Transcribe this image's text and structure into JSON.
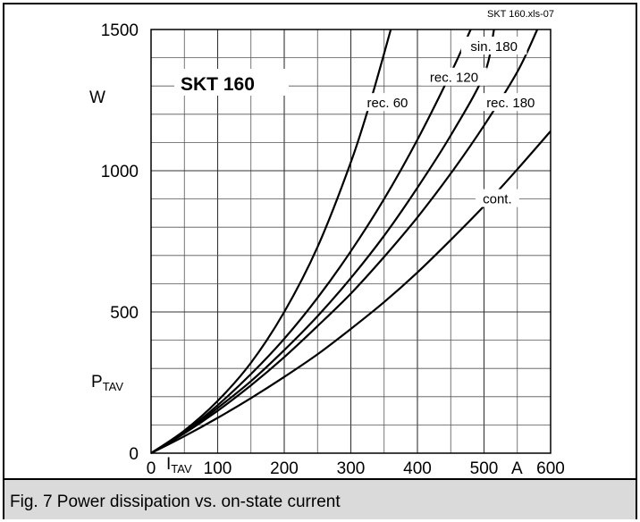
{
  "file_tag": "SKT 160.xls-07",
  "device_label": "SKT 160",
  "caption": "Fig. 7 Power dissipation vs. on-state current",
  "chart_data": {
    "type": "line",
    "title": "",
    "xlim": [
      0,
      600
    ],
    "ylim": [
      0,
      1500
    ],
    "x_ticks": [
      0,
      100,
      200,
      300,
      400,
      500,
      600
    ],
    "x_tick_labels": [
      "0",
      "100",
      "200",
      "300",
      "400",
      "500",
      "600"
    ],
    "y_ticks": [
      0,
      500,
      1000,
      1500
    ],
    "y_tick_labels": [
      "0",
      "500",
      "1000",
      "1500"
    ],
    "x_minor_step": 50,
    "y_minor_step": 100,
    "ylabel_unit": "W",
    "ylabel_symbol": "P",
    "ylabel_sub": "TAV",
    "xlabel_symbol": "I",
    "xlabel_sub": "TAV",
    "xlabel_unit": "A",
    "grid": true,
    "series": [
      {
        "name": "rec. 60",
        "x": [
          0,
          50,
          100,
          150,
          200,
          250,
          300,
          330,
          360
        ],
        "y": [
          0,
          80,
          185,
          320,
          500,
          730,
          1030,
          1250,
          1500
        ]
      },
      {
        "name": "rec. 120",
        "x": [
          0,
          50,
          100,
          150,
          200,
          250,
          300,
          350,
          400,
          450,
          480
        ],
        "y": [
          0,
          75,
          170,
          280,
          405,
          550,
          715,
          900,
          1110,
          1345,
          1500
        ]
      },
      {
        "name": "sin. 180",
        "x": [
          0,
          50,
          100,
          150,
          200,
          250,
          300,
          350,
          400,
          450,
          500,
          515
        ],
        "y": [
          0,
          72,
          160,
          255,
          365,
          485,
          620,
          770,
          940,
          1125,
          1340,
          1500
        ]
      },
      {
        "name": "rec. 180",
        "x": [
          0,
          50,
          100,
          150,
          200,
          250,
          300,
          350,
          400,
          450,
          500,
          550,
          580
        ],
        "y": [
          0,
          70,
          150,
          240,
          340,
          450,
          565,
          695,
          835,
          990,
          1160,
          1350,
          1500
        ]
      },
      {
        "name": "cont.",
        "x": [
          0,
          50,
          100,
          150,
          200,
          250,
          300,
          350,
          400,
          450,
          500,
          550,
          600
        ],
        "y": [
          0,
          60,
          125,
          195,
          270,
          350,
          440,
          535,
          640,
          755,
          875,
          1005,
          1140
        ]
      }
    ],
    "labels": [
      {
        "text": "rec. 60",
        "x": 355,
        "y": 1240
      },
      {
        "text": "rec. 120",
        "x": 455,
        "y": 1330
      },
      {
        "text": "sin. 180",
        "x": 515,
        "y": 1440
      },
      {
        "text": "rec. 180",
        "x": 540,
        "y": 1240
      },
      {
        "text": "cont.",
        "x": 520,
        "y": 900
      }
    ]
  }
}
